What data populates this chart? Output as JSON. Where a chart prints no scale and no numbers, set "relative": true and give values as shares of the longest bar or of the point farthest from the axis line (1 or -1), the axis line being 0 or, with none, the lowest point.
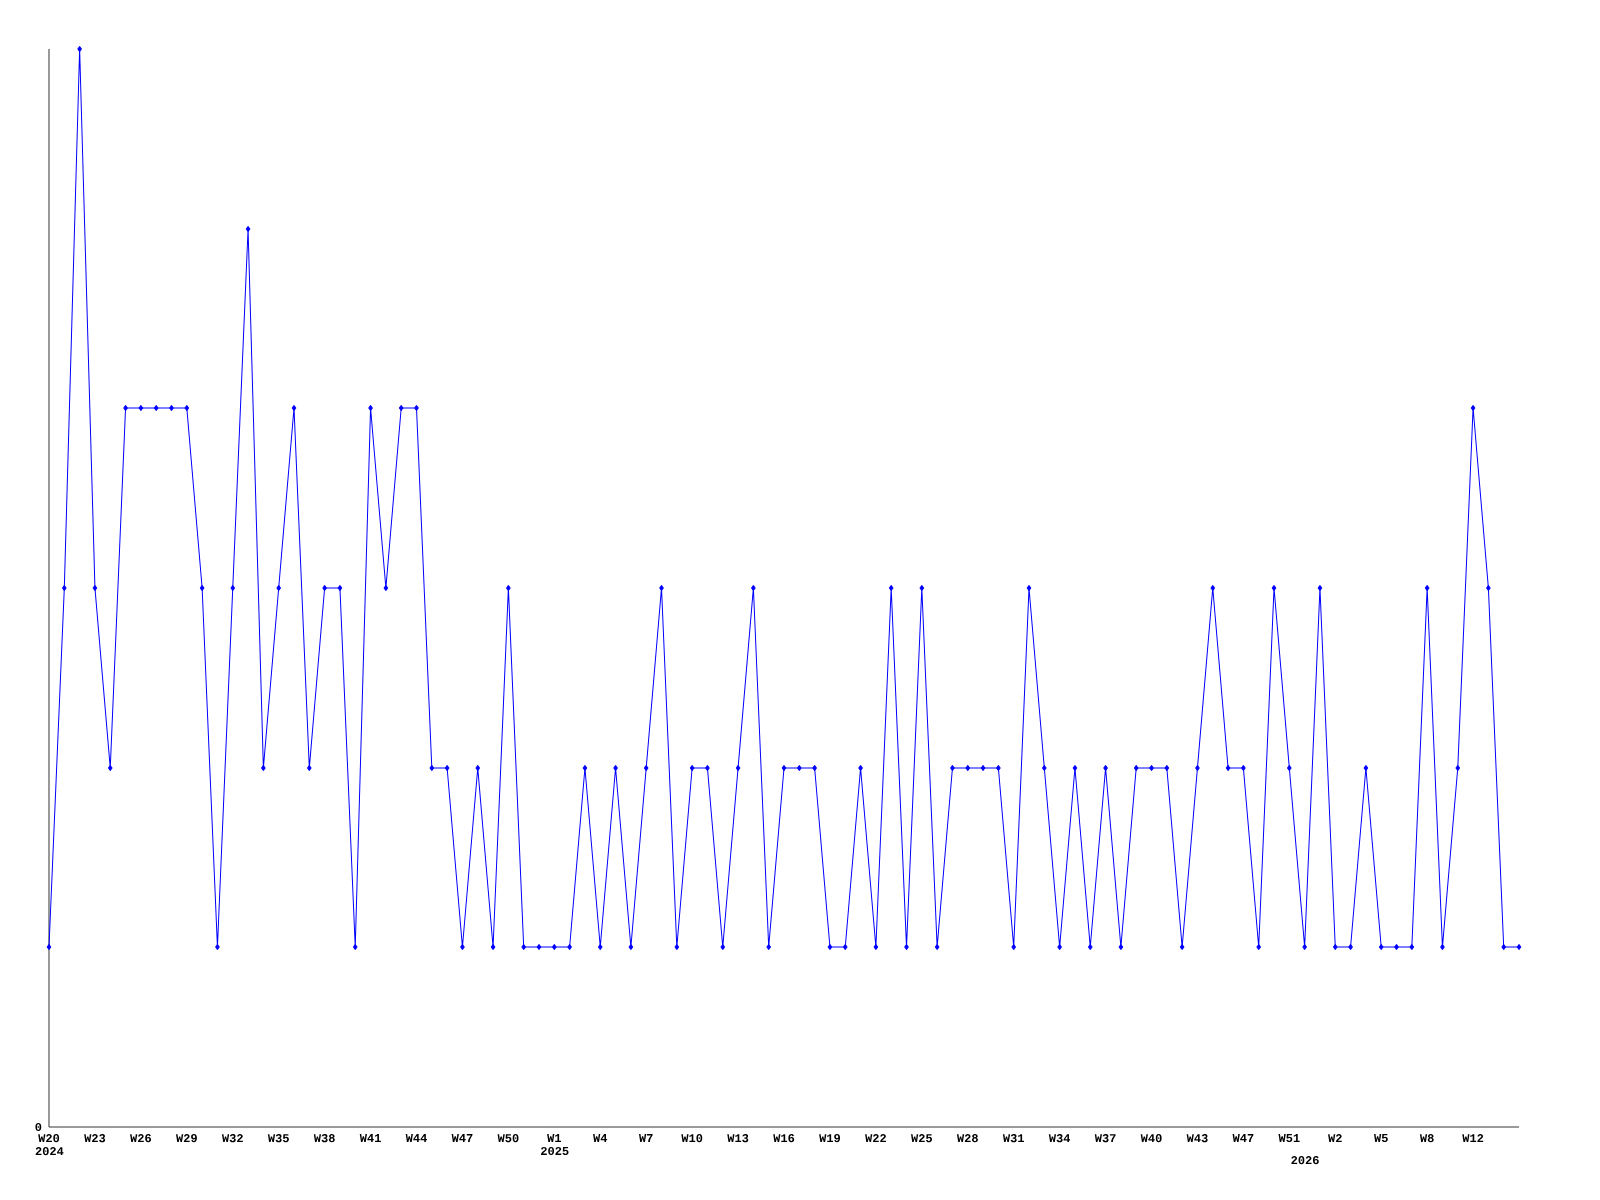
{
  "chart_data": {
    "type": "line",
    "relative": true,
    "color": "#0000ff",
    "marker": "diamond",
    "grid": false,
    "annotations": [
      "0"
    ],
    "categories": [
      "W20 2024",
      null,
      null,
      "W23",
      null,
      null,
      "W26",
      null,
      null,
      "W29",
      null,
      null,
      "W32",
      null,
      null,
      "W35",
      null,
      null,
      "W38",
      null,
      null,
      "W41",
      null,
      null,
      "W44",
      null,
      null,
      "W47",
      null,
      null,
      "W50",
      null,
      null,
      "W1 2025",
      null,
      null,
      "W4",
      null,
      null,
      "W7",
      null,
      null,
      "W10",
      null,
      null,
      "W13",
      null,
      null,
      "W16",
      null,
      null,
      "W19",
      null,
      null,
      "W22",
      null,
      null,
      "W25",
      null,
      null,
      "W28",
      null,
      null,
      "W31",
      null,
      null,
      "W34",
      null,
      null,
      "W37",
      null,
      null,
      "W40",
      null,
      null,
      "W43",
      null,
      null,
      "W47",
      null,
      null,
      "W51",
      "2026",
      null,
      "W2",
      null,
      null,
      "W5",
      null,
      null,
      "W8",
      null,
      null,
      "W12",
      null,
      null,
      null
    ],
    "values": [
      0.167,
      0.5,
      1,
      0.5,
      0.333,
      0.667,
      0.667,
      0.667,
      0.667,
      0.667,
      0.5,
      0.167,
      0.5,
      0.833,
      0.333,
      0.5,
      0.667,
      0.333,
      0.5,
      0.5,
      0.167,
      0.667,
      0.5,
      0.667,
      0.667,
      0.333,
      0.333,
      0.167,
      0.333,
      0.167,
      0.5,
      0.167,
      0.167,
      0.167,
      0.167,
      0.333,
      0.167,
      0.333,
      0.167,
      0.333,
      0.5,
      0.167,
      0.333,
      0.333,
      0.167,
      0.333,
      0.5,
      0.167,
      0.333,
      0.333,
      0.333,
      0.167,
      0.167,
      0.333,
      0.167,
      0.5,
      0.167,
      0.5,
      0.167,
      0.333,
      0.333,
      0.333,
      0.333,
      0.167,
      0.5,
      0.333,
      0.167,
      0.333,
      0.167,
      0.333,
      0.167,
      0.333,
      0.333,
      0.333,
      0.167,
      0.333,
      0.5,
      0.333,
      0.333,
      0.167,
      0.5,
      0.333,
      0.167,
      0.5,
      0.167,
      0.167,
      0.333,
      0.167,
      0.167,
      0.167,
      0.5,
      0.167,
      0.333,
      0.667,
      0.5,
      0.167,
      0.167
    ]
  }
}
